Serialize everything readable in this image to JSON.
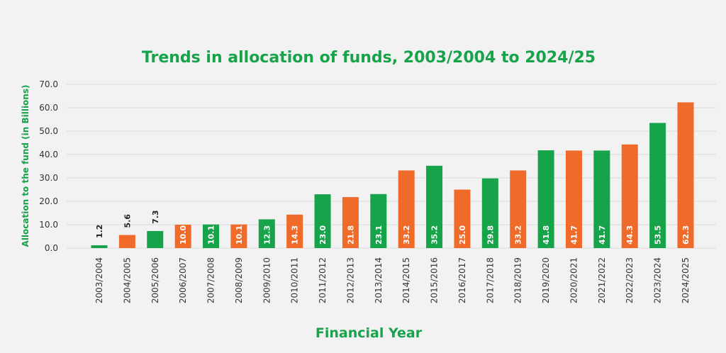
{
  "chart_data": {
    "type": "bar",
    "title": "Trends in allocation of funds, 2003/2004 to 2024/25",
    "xlabel": "Financial Year",
    "ylabel": "Allocation to the fund (in Billions)",
    "ylim": [
      0,
      70
    ],
    "yticks": [
      "0.0",
      "10.0",
      "20.0",
      "30.0",
      "40.0",
      "50.0",
      "60.0",
      "70.0"
    ],
    "grid": true,
    "categories": [
      "2003/2004",
      "2004/2005",
      "2005/2006",
      "2006/2007",
      "2007/2008",
      "2008/2009",
      "2009/2010",
      "2010/2011",
      "2011/2012",
      "2012/2013",
      "2013/2014",
      "2014/2015",
      "2015/2016",
      "2016/2017",
      "2017/2018",
      "2018/2019",
      "2019/2020",
      "2020/2021",
      "2021/2022",
      "2022/2023",
      "2023/2024",
      "2024/2025"
    ],
    "values": [
      1.2,
      5.6,
      7.3,
      10.0,
      10.1,
      10.1,
      12.3,
      14.3,
      23.0,
      21.8,
      23.1,
      33.2,
      35.2,
      25.0,
      29.8,
      33.2,
      41.8,
      41.7,
      41.7,
      44.3,
      53.5,
      62.3
    ],
    "value_labels": [
      "1.2",
      "5.6",
      "7.3",
      "10.0",
      "10.1",
      "10.1",
      "12.3",
      "14.3",
      "23.0",
      "21.8",
      "23.1",
      "33.2",
      "35.2",
      "25.0",
      "29.8",
      "33.2",
      "41.8",
      "41.7",
      "41.7",
      "44.3",
      "53.5",
      "62.3"
    ],
    "colors": {
      "green": "#16a34a",
      "orange": "#f06a2a",
      "title": "#16a34a",
      "axis_text": "#333333",
      "grid": "#d9d9d9",
      "background": "#f2f2f2"
    },
    "bar_color_pattern": [
      "green",
      "orange"
    ]
  }
}
